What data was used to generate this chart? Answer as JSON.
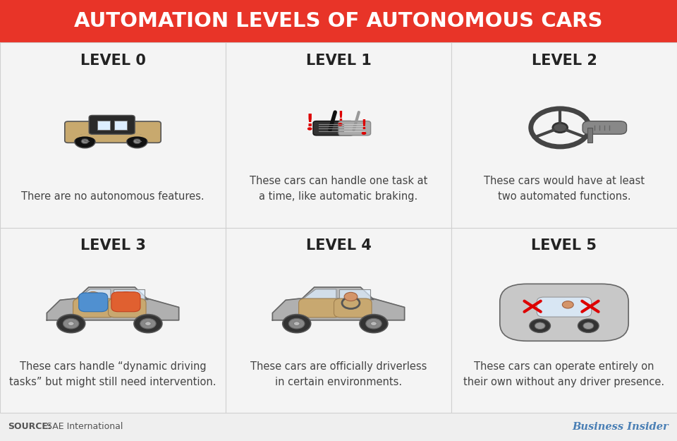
{
  "title": "AUTOMATION LEVELS OF AUTONOMOUS CARS",
  "title_bg_color": "#e83428",
  "title_text_color": "#ffffff",
  "background_color": "#efefef",
  "cell_bg_color": "#f4f4f4",
  "grid_line_color": "#d0d0d0",
  "levels": [
    {
      "label": "LEVEL 0",
      "description": "There are no autonomous features."
    },
    {
      "label": "LEVEL 1",
      "description": "These cars can handle one task at\na time, like automatic braking."
    },
    {
      "label": "LEVEL 2",
      "description": "These cars would have at least\ntwo automated functions."
    },
    {
      "label": "LEVEL 3",
      "description": "These cars handle “dynamic driving\ntasks” but might still need intervention."
    },
    {
      "label": "LEVEL 4",
      "description": "These cars are officially driverless\nin certain environments."
    },
    {
      "label": "LEVEL 5",
      "description": "These cars can operate entirely on\ntheir own without any driver presence."
    }
  ],
  "source_bold": "SOURCE:",
  "source_normal": " SAE International",
  "source_color": "#555555",
  "brand_text": "Business Insider",
  "brand_color": "#4a7fb5",
  "level_label_color": "#222222",
  "description_color": "#444444",
  "label_fontsize": 15,
  "desc_fontsize": 10.5,
  "title_fontsize": 21
}
